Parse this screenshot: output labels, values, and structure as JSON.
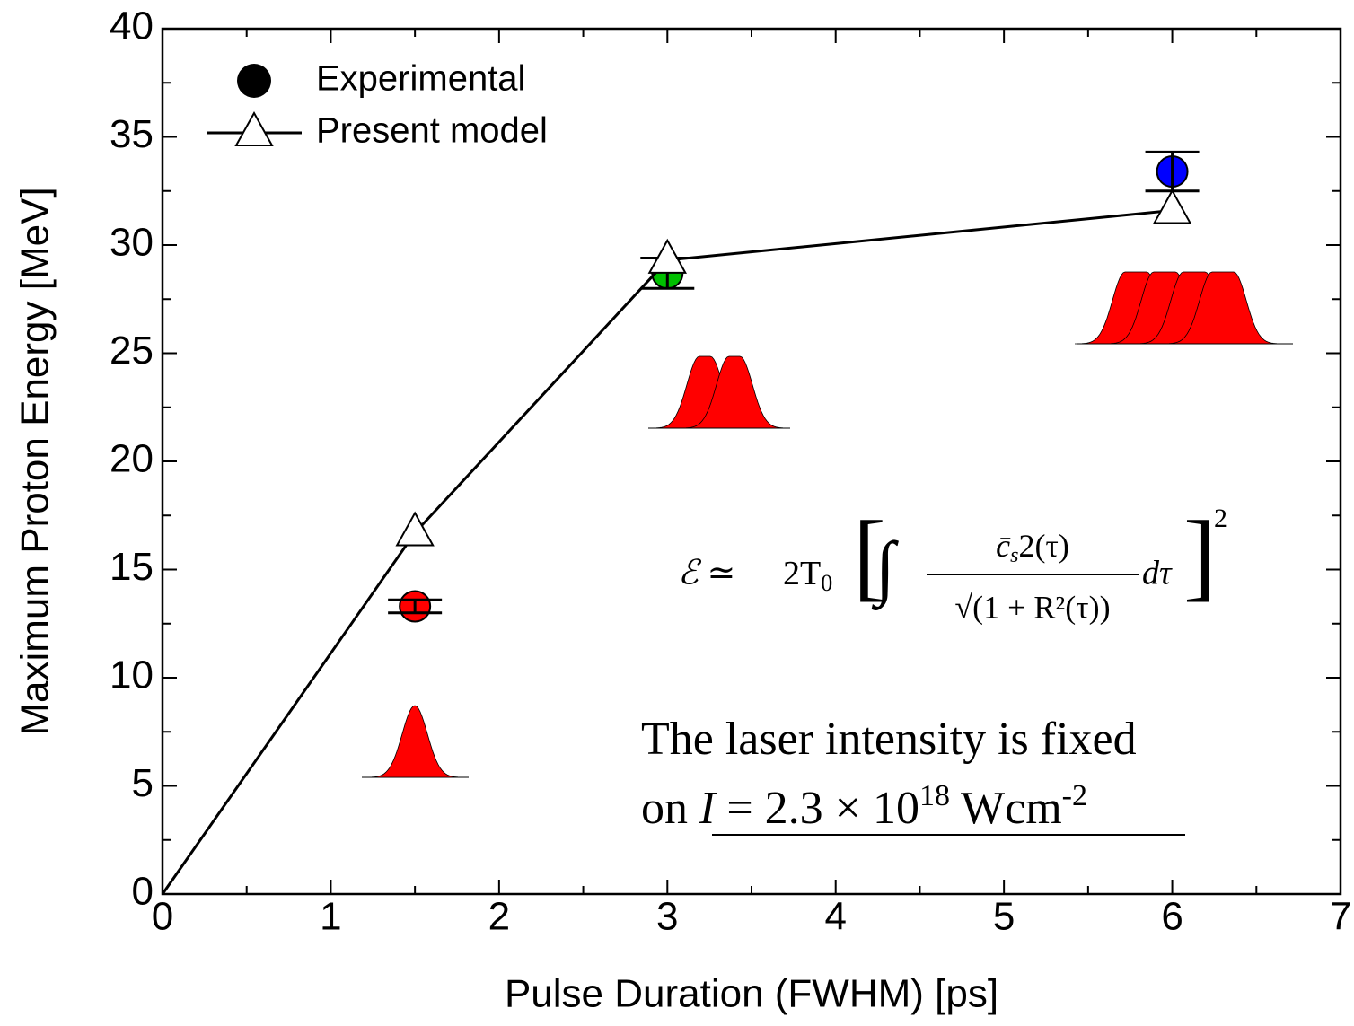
{
  "chart_data": {
    "type": "scatter",
    "x_label": "Pulse Duration (FWHM) [ps]",
    "y_label": "Maximum Proton Energy [MeV]",
    "xlim": [
      0,
      7
    ],
    "xticks": [
      0,
      1,
      2,
      3,
      4,
      5,
      6,
      7
    ],
    "ylim": [
      0,
      40
    ],
    "yticks": [
      0,
      5,
      10,
      15,
      20,
      25,
      30,
      35,
      40
    ],
    "legend": "upper left",
    "series": [
      {
        "name": "Experimental",
        "color": "#000000",
        "marker": "circle",
        "x": [
          1.5,
          3,
          6
        ],
        "values": [
          13.3,
          28.7,
          33.4
        ],
        "errors": [
          0.3,
          0.7,
          0.9
        ],
        "point_colors": [
          "#ff0000",
          "#00c000",
          "#0000ff"
        ]
      },
      {
        "name": "Present model",
        "color": "#000000",
        "marker": "triangle",
        "line": true,
        "x": [
          0,
          1.5,
          3,
          6
        ],
        "values": [
          0,
          16.7,
          29.3,
          31.6
        ],
        "marker_shown": [
          false,
          true,
          true,
          true
        ]
      }
    ],
    "formula": {
      "lhs": "ℰ ≃",
      "factor": "2T",
      "factor_sub": "0",
      "open": "[",
      "integral": "∫",
      "numerator": "c̄",
      "numerator_sub": "s",
      "numerator_rest": "2(τ)",
      "denominator": "√(1 + R²(τ))",
      "differential": "dτ",
      "close": "]",
      "power": "2"
    },
    "note": {
      "line1": "The laser intensity is fixed",
      "prefix": "on ",
      "symbol": "I",
      "equals": " = 2.3 × 10",
      "exponent": "18",
      "unit": " Wcm",
      "unit_exponent": "-2"
    }
  }
}
